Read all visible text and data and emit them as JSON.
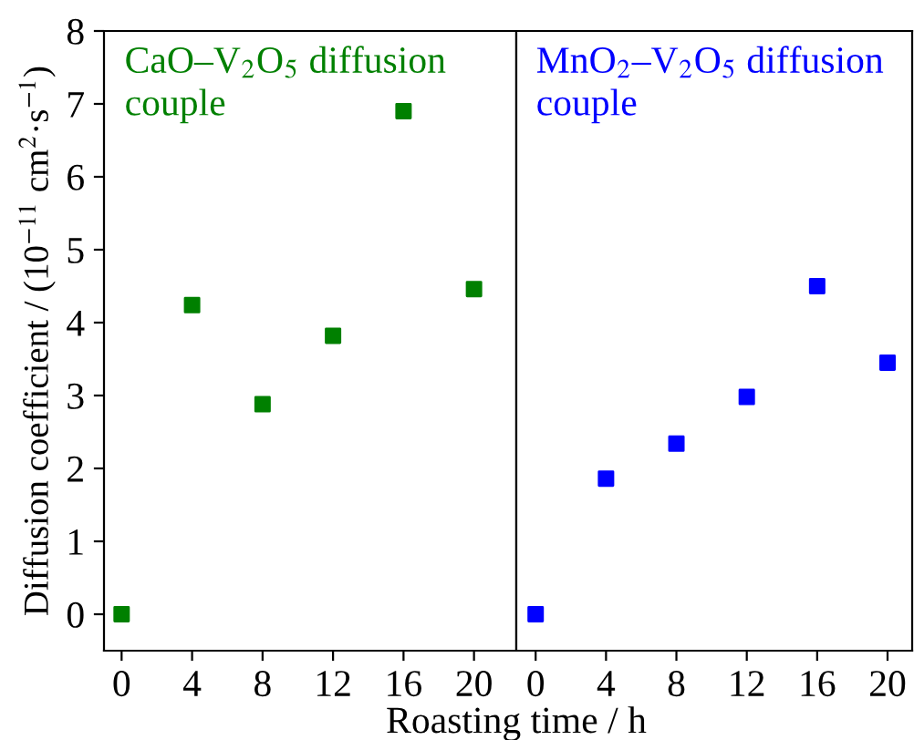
{
  "chart_data": [
    {
      "type": "scatter",
      "xlabel": "Roasting time / h",
      "ylabel": "Diffusion coefficient / (10$^{−11}$ cm$^{2}$·s$^{−1}$)",
      "annotations": [
        "CaO–V$_{2}$O$_{5}$ diffusion\ncouple"
      ],
      "x": [
        0,
        4,
        8,
        12,
        16,
        20
      ],
      "series": [
        {
          "color": "#008000",
          "values": [
            0,
            4.24,
            2.88,
            3.82,
            6.9,
            4.46
          ]
        }
      ],
      "marker": "square",
      "xlim": [
        -1,
        22.4
      ],
      "xticks": [
        0,
        4,
        8,
        12,
        16,
        20
      ],
      "ylim": [
        -0.5,
        8
      ],
      "yticks": [
        0,
        1,
        2,
        3,
        4,
        5,
        6,
        7,
        8
      ]
    },
    {
      "type": "scatter",
      "annotations": [
        "MnO$_{2}$–V$_{2}$O$_{5}$ diffusion\ncouple"
      ],
      "x": [
        0,
        4,
        8,
        12,
        16,
        20
      ],
      "series": [
        {
          "color": "#0000ff",
          "values": [
            0,
            1.86,
            2.34,
            2.98,
            4.5,
            3.45
          ]
        }
      ],
      "marker": "square",
      "xlim": [
        -1.1,
        21.4
      ],
      "xticks": [
        0,
        4,
        8,
        12,
        16,
        20
      ],
      "ylim": [
        -0.5,
        8
      ],
      "yticks": [
        0,
        1,
        2,
        3,
        4,
        5,
        6,
        7,
        8
      ],
      "tick_labels": "x"
    }
  ]
}
